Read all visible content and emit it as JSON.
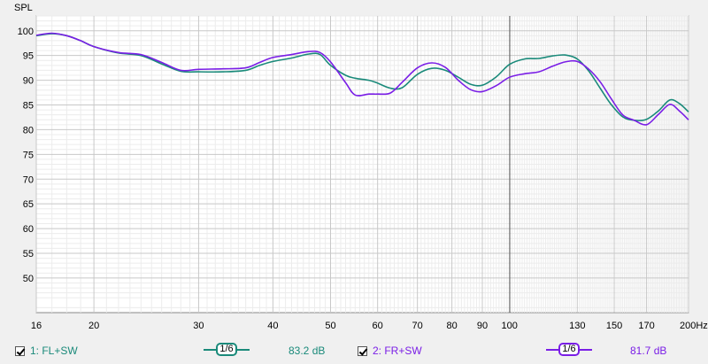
{
  "chart_data": {
    "type": "line",
    "ylabel": "SPL",
    "x_unit": "Hz",
    "xscale": "log",
    "xlim": [
      16,
      200
    ],
    "ylim": [
      43,
      103
    ],
    "x_ticks": [
      16,
      20,
      30,
      40,
      50,
      60,
      70,
      80,
      90,
      100,
      130,
      150,
      170,
      200
    ],
    "x_tick_labels": [
      "16",
      "20",
      "30",
      "40",
      "50",
      "60",
      "70",
      "80",
      "90",
      "100",
      "130",
      "150",
      "170",
      "200Hz"
    ],
    "y_ticks": [
      50,
      55,
      60,
      65,
      70,
      75,
      80,
      85,
      90,
      95,
      100
    ],
    "y_tick_labels": [
      "50",
      "55",
      "60",
      "65",
      "70",
      "75",
      "80",
      "85",
      "90",
      "95",
      "100"
    ],
    "grid": true,
    "series": [
      {
        "name": "1: FL+SW",
        "color": "#1a8a7a",
        "x": [
          16,
          17,
          18,
          19,
          20,
          22,
          24,
          26,
          28,
          30,
          33,
          36,
          38,
          40,
          43,
          46,
          48,
          50,
          53,
          55,
          58,
          60,
          63,
          66,
          70,
          74,
          78,
          82,
          86,
          90,
          95,
          100,
          106,
          112,
          118,
          124,
          130,
          136,
          142,
          148,
          155,
          162,
          170,
          178,
          186,
          193,
          200
        ],
        "y": [
          99.0,
          99.4,
          99.0,
          98.0,
          96.8,
          95.5,
          95.0,
          93.3,
          91.8,
          91.7,
          91.7,
          92.0,
          93.0,
          93.8,
          94.5,
          95.3,
          95.2,
          93.0,
          91.0,
          90.4,
          90.0,
          89.4,
          88.4,
          88.5,
          91.2,
          92.4,
          92.0,
          90.6,
          89.2,
          89.0,
          90.7,
          93.2,
          94.3,
          94.4,
          94.9,
          95.1,
          94.3,
          91.8,
          88.4,
          85.2,
          82.6,
          81.9,
          82.1,
          83.8,
          86.0,
          85.3,
          83.6
        ]
      },
      {
        "name": "2: FR+SW",
        "color": "#7a1ee6",
        "x": [
          16,
          17,
          18,
          19,
          20,
          22,
          24,
          26,
          28,
          30,
          33,
          36,
          38,
          40,
          43,
          46,
          48,
          50,
          53,
          55,
          58,
          60,
          63,
          66,
          70,
          74,
          78,
          82,
          86,
          90,
          95,
          100,
          106,
          112,
          118,
          124,
          130,
          136,
          142,
          148,
          155,
          162,
          170,
          178,
          186,
          193,
          200
        ],
        "y": [
          99.1,
          99.5,
          99.0,
          98.0,
          96.8,
          95.6,
          95.2,
          93.6,
          92.0,
          92.2,
          92.3,
          92.5,
          93.6,
          94.6,
          95.2,
          95.8,
          95.6,
          93.7,
          89.5,
          87.0,
          87.2,
          87.2,
          87.4,
          89.6,
          92.5,
          93.5,
          92.6,
          90.0,
          88.1,
          87.7,
          88.9,
          90.6,
          91.3,
          91.7,
          92.8,
          93.7,
          93.8,
          92.2,
          89.7,
          86.4,
          83.0,
          81.9,
          81.0,
          83.1,
          85.1,
          83.8,
          82.0
        ]
      }
    ]
  },
  "legend": {
    "series1": {
      "label": "1: FL+SW",
      "smoothing": "1/6",
      "level": "83.2 dB",
      "color": "#1a8a7a"
    },
    "series2": {
      "label": "2: FR+SW",
      "smoothing": "1/6",
      "level": "81.7 dB",
      "color": "#7a1ee6"
    }
  }
}
